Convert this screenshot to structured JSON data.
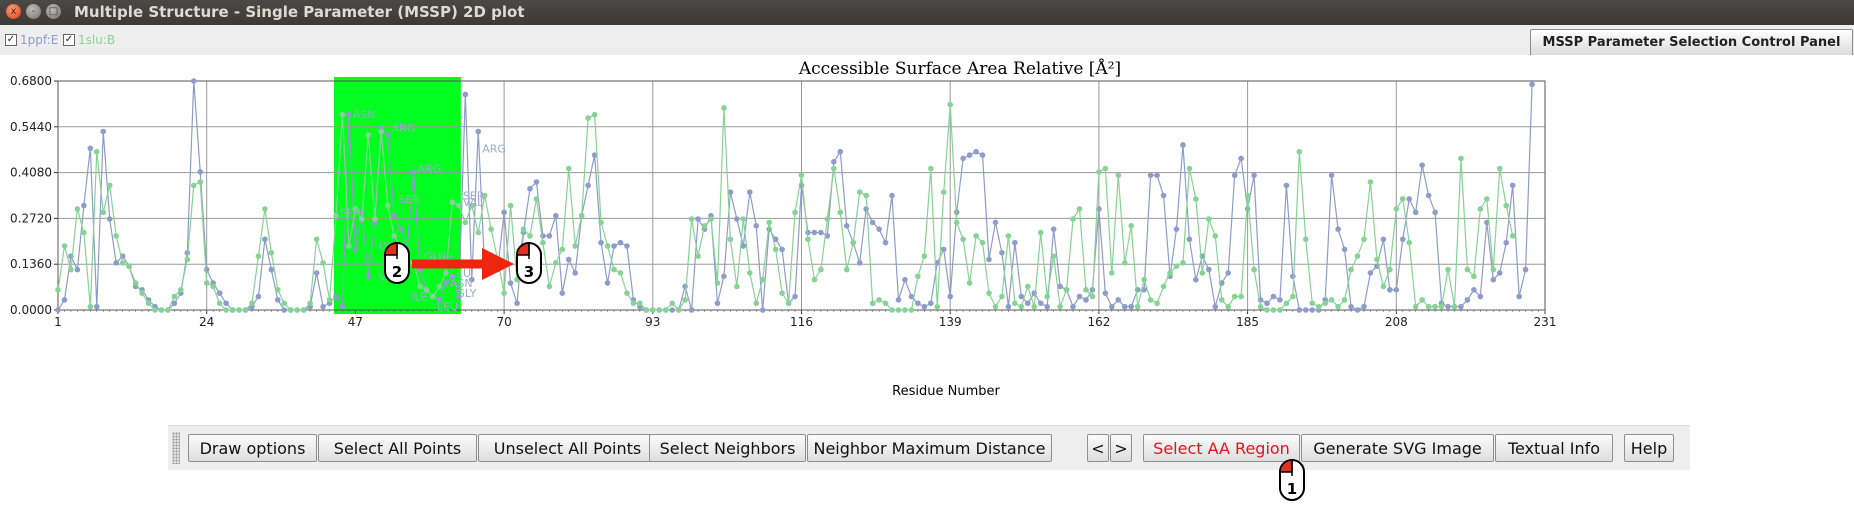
{
  "window": {
    "title": "Multiple Structure - Single Parameter (MSSP) 2D plot",
    "close_glyph": "x",
    "minimize_glyph": "-",
    "maximize_glyph": "□"
  },
  "legend": [
    {
      "label": "1ppf:E",
      "checked": true,
      "color": "#8e9cc9"
    },
    {
      "label": "1slu:B",
      "checked": true,
      "color": "#86d395"
    }
  ],
  "checkbox_mark": "✓",
  "control_panel_button": "MSSP Parameter Selection Control Panel",
  "chart_data": {
    "type": "line",
    "title": "Accessible Surface Area Relative [Å²]",
    "xlabel": "Residue Number",
    "ylabel": "",
    "xlim": [
      1,
      231
    ],
    "ylim": [
      0.0,
      0.68
    ],
    "x_ticks": [
      "1",
      "24",
      "47",
      "70",
      "93",
      "116",
      "139",
      "162",
      "185",
      "208",
      "231"
    ],
    "y_ticks": [
      "0.0000",
      "0.1360",
      "0.2720",
      "0.4080",
      "0.5440",
      "0.6800"
    ],
    "grid": true,
    "selected_region": [
      44,
      63
    ],
    "selection_color": "#00ff1e",
    "series": [
      {
        "name": "1ppf:E",
        "color": "#8e9cc9",
        "x_start": 1,
        "values": [
          0,
          0.03,
          0.16,
          0.12,
          0.31,
          0.48,
          0.01,
          0.53,
          0.27,
          0.14,
          0.16,
          0.13,
          0.07,
          0.06,
          0.03,
          0.01,
          0,
          0,
          0.02,
          0.05,
          0.17,
          0.68,
          0.41,
          0.12,
          0.08,
          0.05,
          0.02,
          0,
          0,
          0,
          0.01,
          0.04,
          0.21,
          0.12,
          0.03,
          0,
          0,
          0,
          0,
          0.01,
          0.11,
          0.01,
          0.02,
          0.04,
          0.01,
          0.58,
          0.18,
          0.29,
          0.1,
          0.26,
          0.54,
          0.52,
          0.28,
          0.24,
          0.18,
          0.41,
          0.12,
          0.06,
          0.04,
          0.03,
          0.08,
          0.1,
          0.04,
          0.64,
          0.09,
          0.53,
          0.12,
          0.14,
          0.12,
          0.29,
          0.08,
          0.02,
          0.23,
          0.36,
          0.38,
          0.22,
          0.22,
          0.28,
          0.05,
          0.15,
          0.11,
          0.28,
          0.37,
          0.46,
          0.2,
          0.08,
          0.19,
          0.2,
          0.19,
          0.03,
          0.01,
          0,
          0,
          0,
          0,
          0,
          0,
          0.07,
          0,
          0.27,
          0.24,
          0.28,
          0.02,
          0.1,
          0.35,
          0.27,
          0.19,
          0.35,
          0.25,
          0,
          0.24,
          0.21,
          0.18,
          0.02,
          0.04,
          0.37,
          0.23,
          0.23,
          0.23,
          0.22,
          0.44,
          0.47,
          0.25,
          0.2,
          0.14,
          0.3,
          0.26,
          0.24,
          0.2,
          0.34,
          0.03,
          0.09,
          0.04,
          0.02,
          0.01,
          0.02,
          0.14,
          0.18,
          0.04,
          0.29,
          0.45,
          0.46,
          0.47,
          0.46,
          0.15,
          0.26,
          0.17,
          0.01,
          0.2,
          0.04,
          0.02,
          0.05,
          0.02,
          0.01,
          0.24,
          0.07,
          0.06,
          0.01,
          0.04,
          0.03,
          0.06,
          0.3,
          0.05,
          0.01,
          0.03,
          0.01,
          0.01,
          0.06,
          0.06,
          0.4,
          0.4,
          0.34,
          0.1,
          0.24,
          0.49,
          0.21,
          0.09,
          0.16,
          0.12,
          0.01,
          0.08,
          0.11,
          0.4,
          0.45,
          0.3,
          0.4,
          0.03,
          0.02,
          0.04,
          0.03,
          0.37,
          0.1,
          0,
          0,
          0,
          0,
          0.03,
          0.4,
          0.24,
          0.18,
          0.01,
          0,
          0.01,
          0.11,
          0.13,
          0.21,
          0.06,
          0.06,
          0.21,
          0.33,
          0.29,
          0.43,
          0.34,
          0.29,
          0.02,
          0.01,
          0.01,
          0.01,
          0.03,
          0.06,
          0.04,
          0.26,
          0.09,
          0.11,
          0.2,
          0.37,
          0.04,
          0.12,
          0.67
        ]
      },
      {
        "name": "1slu:B",
        "color": "#86d395",
        "x_start": 1,
        "values": [
          0.06,
          0.19,
          0.12,
          0.3,
          0.23,
          0.01,
          0.47,
          0.29,
          0.37,
          0.22,
          0.14,
          0.13,
          0.08,
          0.05,
          0.02,
          0,
          0,
          0,
          0.04,
          0.06,
          0.15,
          0.37,
          0.38,
          0.08,
          0.07,
          0.02,
          0,
          0,
          0,
          0,
          0.02,
          0.16,
          0.3,
          0.17,
          0.06,
          0.02,
          0,
          0,
          0,
          0.02,
          0.21,
          0.14,
          0.03,
          0.28,
          0.58,
          0.19,
          0.3,
          0.27,
          0.52,
          0.27,
          0.53,
          0.31,
          0.22,
          0.19,
          0.14,
          0.14,
          0.07,
          0.06,
          0.04,
          0.07,
          0.11,
          0.32,
          0.31,
          0.26,
          0.31,
          0.23,
          0.34,
          0.24,
          0.15,
          0.05,
          0.31,
          0.09,
          0.24,
          0.22,
          0.33,
          0.2,
          0.07,
          0.14,
          0.18,
          0.42,
          0.19,
          0.28,
          0.57,
          0.58,
          0.26,
          0.19,
          0.12,
          0.11,
          0.05,
          0.02,
          0.02,
          0,
          0,
          0,
          0,
          0.02,
          0,
          0.03,
          0.27,
          0.16,
          0.25,
          0.27,
          0.08,
          0.6,
          0.21,
          0.07,
          0.27,
          0.11,
          0.02,
          0.09,
          0.26,
          0.18,
          0.05,
          0.02,
          0.29,
          0.4,
          0.21,
          0.09,
          0.12,
          0.27,
          0.42,
          0.29,
          0.12,
          0.2,
          0.35,
          0.34,
          0.02,
          0.03,
          0.02,
          0,
          0,
          0,
          0,
          0.1,
          0.16,
          0.42,
          0.01,
          0.35,
          0.61,
          0.26,
          0.21,
          0.08,
          0.22,
          0.2,
          0.05,
          0.01,
          0.04,
          0.22,
          0.02,
          0.01,
          0.07,
          0.01,
          0.23,
          0.04,
          0.16,
          0.01,
          0.06,
          0.27,
          0.3,
          0.06,
          0.04,
          0.41,
          0.42,
          0.11,
          0.4,
          0.14,
          0.25,
          0.01,
          0.09,
          0.03,
          0.02,
          0.07,
          0.11,
          0.13,
          0.14,
          0.42,
          0.33,
          0.11,
          0.27,
          0.22,
          0.03,
          0.01,
          0.04,
          0.04,
          0.34,
          0.12,
          0.01,
          0,
          0,
          0,
          0.02,
          0.04,
          0.47,
          0.21,
          0.02,
          0.01,
          0.02,
          0.03,
          0.01,
          0.03,
          0.12,
          0.16,
          0.21,
          0.38,
          0.15,
          0.07,
          0.12,
          0.3,
          0.33,
          0.2,
          0.01,
          0.03,
          0.01,
          0.01,
          0.01,
          0.12,
          0.01,
          0.45,
          0.12,
          0.1,
          0.3,
          0.33,
          0.12,
          0.42,
          0.31,
          0.22
        ]
      }
    ],
    "point_labels": [
      {
        "text": "ASN",
        "x": 46,
        "y": 0.58
      },
      {
        "text": "ARG",
        "x": 52,
        "y": 0.54
      },
      {
        "text": "ARG",
        "x": 56,
        "y": 0.42
      },
      {
        "text": "SER",
        "x": 53,
        "y": 0.33
      },
      {
        "text": "SER",
        "x": 44,
        "y": 0.29
      },
      {
        "text": "LYS",
        "x": 50,
        "y": 0.19
      },
      {
        "text": "GLU",
        "x": 57,
        "y": 0.16
      },
      {
        "text": "ARG",
        "x": 58,
        "y": 0.15
      },
      {
        "text": "VAL",
        "x": 50,
        "y": 0.1
      },
      {
        "text": "LEU",
        "x": 61,
        "y": 0.11
      },
      {
        "text": "ASN",
        "x": 61,
        "y": 0.08
      },
      {
        "text": "ILE",
        "x": 55,
        "y": 0.04
      },
      {
        "text": "GLY",
        "x": 62,
        "y": 0.05
      },
      {
        "text": "LEU",
        "x": 59,
        "y": 0.01
      },
      {
        "text": "ARG",
        "x": 66,
        "y": 0.48
      },
      {
        "text": "SER",
        "x": 63,
        "y": 0.34
      },
      {
        "text": "VAL",
        "x": 63,
        "y": 0.32
      }
    ]
  },
  "toolbar": {
    "buttons": [
      "Draw options",
      "Select All Points",
      "Unselect All Points",
      "Select Neighbors",
      "Neighbor Maximum Distance",
      "<",
      ">",
      "Select AA Region",
      "Generate SVG Image",
      "Textual Info",
      "Help"
    ],
    "active_color": "#e4141b"
  },
  "cursor_markers": [
    {
      "step": "1",
      "target": "select-aa-region"
    },
    {
      "step": "2",
      "target": "drag-start"
    },
    {
      "step": "3",
      "target": "drag-end"
    }
  ],
  "drag_arrow_color": "#f0250f"
}
